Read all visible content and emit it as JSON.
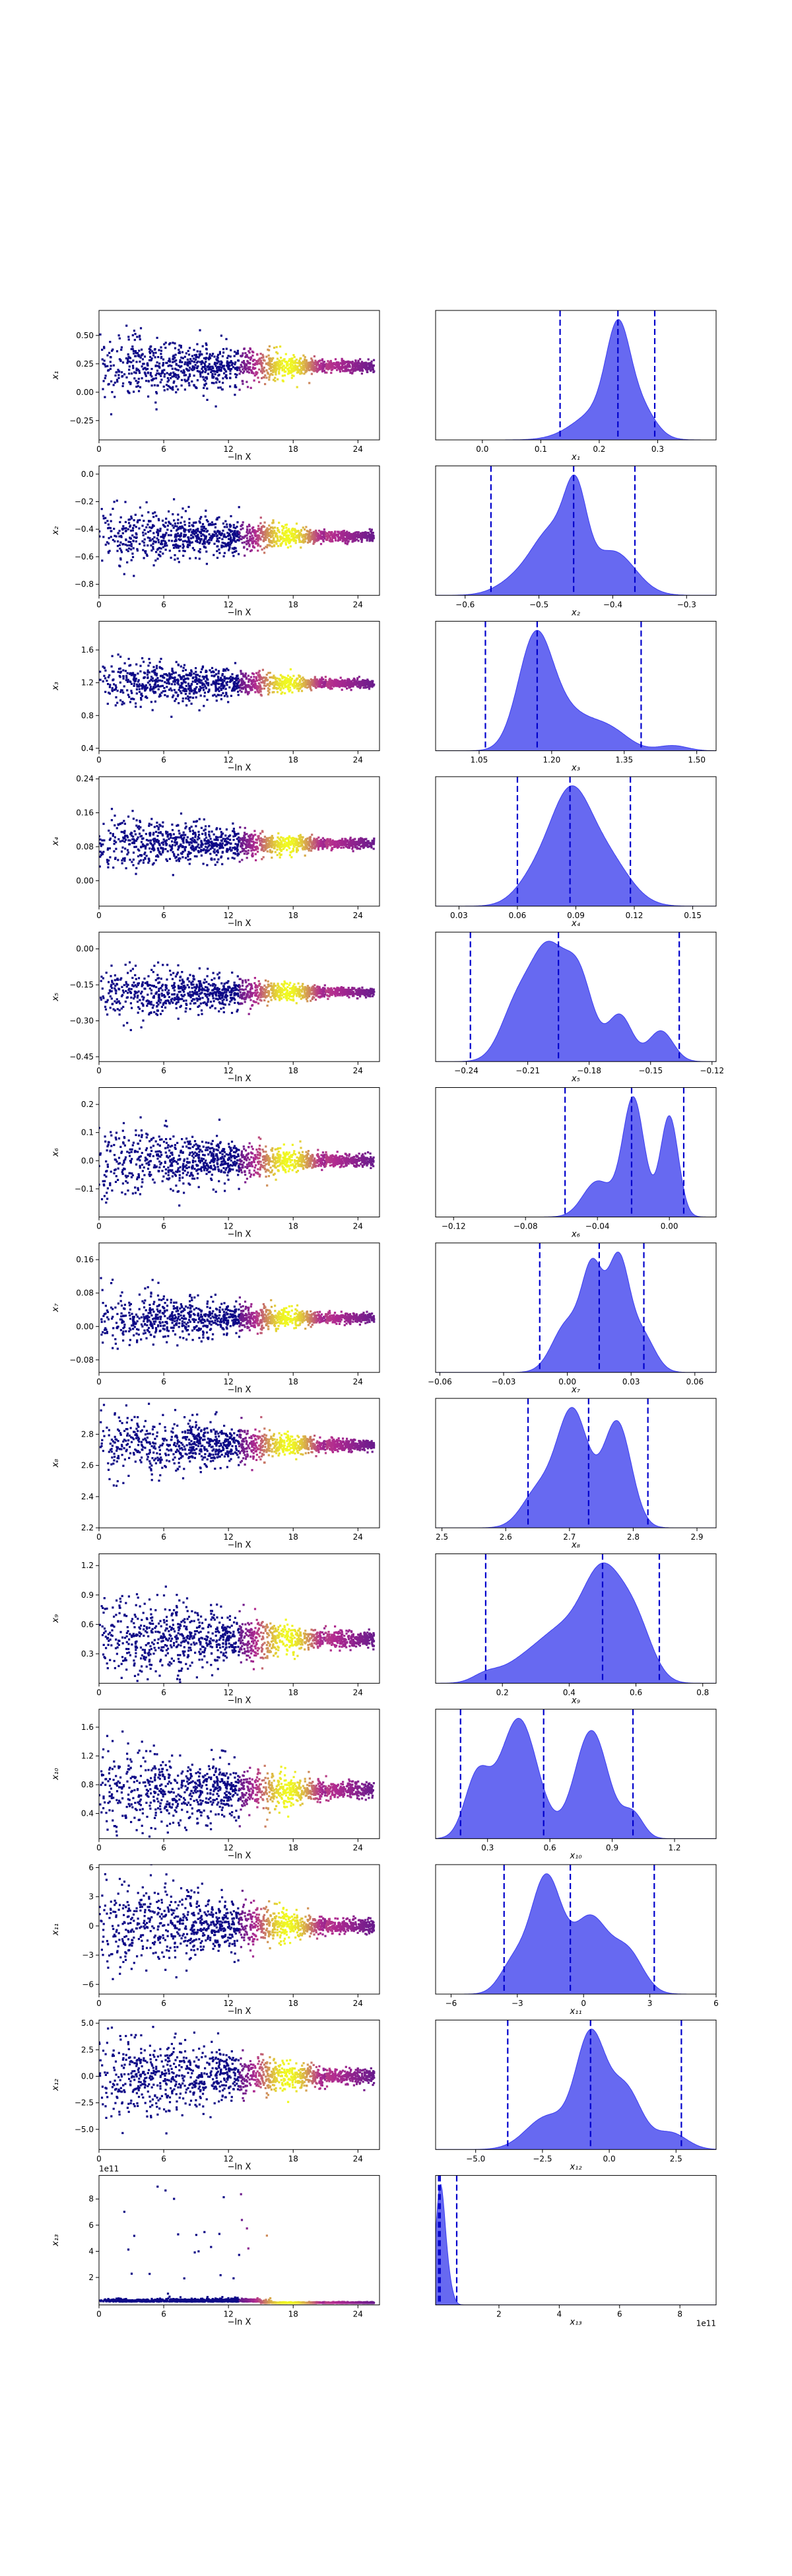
{
  "colors": {
    "density_fill": "#5a5cf0",
    "density_stroke": "#3b3df0",
    "quantile_line": "#0000cc",
    "scatter_low": "#0d0887",
    "scatter_mid": "#b12a90",
    "scatter_high": "#f0f921"
  },
  "chart_data": {
    "type": "scatter+density",
    "layout": "13 rows x 2 columns",
    "rows": [
      {
        "param": "x1",
        "ylabel": "x₁",
        "xlabel": "x₁",
        "trace": {
          "ylim": [
            -0.42,
            0.72
          ],
          "yticks": [
            -0.25,
            0.0,
            0.25,
            0.5
          ],
          "ytick_labels": [
            "−0.25",
            "0.00",
            "0.25",
            "0.50"
          ],
          "center": 0.23,
          "spread": 0.14,
          "skew": 0.0
        },
        "density": {
          "xlim": [
            -0.08,
            0.4
          ],
          "xticks": [
            0.0,
            0.1,
            0.2,
            0.3
          ],
          "xtick_labels": [
            "0.0",
            "0.1",
            "0.2",
            "0.3"
          ],
          "quantiles": [
            0.133,
            0.232,
            0.295
          ],
          "peaks": [
            [
              0.232,
              1.0,
              0.02
            ],
            [
              0.205,
              0.35,
              0.045
            ],
            [
              0.27,
              0.3,
              0.025
            ]
          ]
        }
      },
      {
        "param": "x2",
        "ylabel": "x₂",
        "xlabel": "x₂",
        "trace": {
          "ylim": [
            -0.88,
            0.06
          ],
          "yticks": [
            -0.8,
            -0.6,
            -0.4,
            -0.2,
            0.0
          ],
          "ytick_labels": [
            "−0.8",
            "−0.6",
            "−0.4",
            "−0.2",
            "0.0"
          ],
          "center": -0.45,
          "spread": 0.1,
          "skew": 0.0
        },
        "density": {
          "xlim": [
            -0.64,
            -0.26
          ],
          "xticks": [
            -0.6,
            -0.5,
            -0.4,
            -0.3
          ],
          "xtick_labels": [
            "−0.6",
            "−0.5",
            "−0.4",
            "−0.3"
          ],
          "quantiles": [
            -0.565,
            -0.453,
            -0.37
          ],
          "peaks": [
            [
              -0.45,
              1.0,
              0.015
            ],
            [
              -0.48,
              0.7,
              0.025
            ],
            [
              -0.4,
              0.55,
              0.03
            ],
            [
              -0.52,
              0.25,
              0.03
            ]
          ]
        }
      },
      {
        "param": "x3",
        "ylabel": "x₃",
        "xlabel": "x₃",
        "trace": {
          "ylim": [
            0.37,
            1.95
          ],
          "yticks": [
            0.4,
            0.8,
            1.2,
            1.6
          ],
          "ytick_labels": [
            "0.4",
            "0.8",
            "1.2",
            "1.6"
          ],
          "center": 1.19,
          "spread": 0.14,
          "skew": 0.0
        },
        "density": {
          "xlim": [
            0.96,
            1.54
          ],
          "xticks": [
            1.05,
            1.2,
            1.35,
            1.5
          ],
          "xtick_labels": [
            "1.05",
            "1.20",
            "1.35",
            "1.50"
          ],
          "quantiles": [
            1.063,
            1.17,
            1.385
          ],
          "peaks": [
            [
              1.165,
              1.0,
              0.035
            ],
            [
              1.23,
              0.35,
              0.05
            ],
            [
              1.32,
              0.18,
              0.04
            ],
            [
              1.45,
              0.05,
              0.03
            ]
          ]
        }
      },
      {
        "param": "x4",
        "ylabel": "x₄",
        "xlabel": "x₄",
        "trace": {
          "ylim": [
            -0.06,
            0.245
          ],
          "yticks": [
            0.0,
            0.08,
            0.16,
            0.24
          ],
          "ytick_labels": [
            "0.00",
            "0.08",
            "0.16",
            "0.24"
          ],
          "center": 0.087,
          "spread": 0.03,
          "skew": 0.0
        },
        "density": {
          "xlim": [
            0.018,
            0.162
          ],
          "xticks": [
            0.03,
            0.06,
            0.09,
            0.12,
            0.15
          ],
          "xtick_labels": [
            "0.03",
            "0.06",
            "0.09",
            "0.12",
            "0.15"
          ],
          "quantiles": [
            0.06,
            0.087,
            0.118
          ],
          "peaks": [
            [
              0.087,
              1.0,
              0.01
            ],
            [
              0.105,
              0.5,
              0.012
            ],
            [
              0.07,
              0.3,
              0.01
            ]
          ]
        }
      },
      {
        "param": "x5",
        "ylabel": "x₅",
        "xlabel": "x₅",
        "trace": {
          "ylim": [
            -0.47,
            0.07
          ],
          "yticks": [
            -0.45,
            -0.3,
            -0.15,
            0.0
          ],
          "ytick_labels": [
            "−0.45",
            "−0.30",
            "−0.15",
            "0.00"
          ],
          "center": -0.18,
          "spread": 0.05,
          "skew": 0.0
        },
        "density": {
          "xlim": [
            -0.255,
            -0.118
          ],
          "xticks": [
            -0.24,
            -0.21,
            -0.18,
            -0.15,
            -0.12
          ],
          "xtick_labels": [
            "−0.24",
            "−0.21",
            "−0.18",
            "−0.15",
            "−0.12"
          ],
          "quantiles": [
            -0.238,
            -0.195,
            -0.136
          ],
          "peaks": [
            [
              -0.2,
              1.0,
              0.008
            ],
            [
              -0.185,
              0.8,
              0.007
            ],
            [
              -0.215,
              0.55,
              0.008
            ],
            [
              -0.165,
              0.45,
              0.006
            ],
            [
              -0.145,
              0.3,
              0.006
            ]
          ]
        }
      },
      {
        "param": "x6",
        "ylabel": "x₆",
        "xlabel": "x₆",
        "trace": {
          "ylim": [
            -0.2,
            0.26
          ],
          "yticks": [
            -0.1,
            0.0,
            0.1,
            0.2
          ],
          "ytick_labels": [
            "−0.1",
            "0.0",
            "0.1",
            "0.2"
          ],
          "center": 0.0,
          "spread": 0.06,
          "skew": 0.0
        },
        "density": {
          "xlim": [
            -0.13,
            0.026
          ],
          "xticks": [
            -0.12,
            -0.08,
            -0.04,
            0.0
          ],
          "xtick_labels": [
            "−0.12",
            "−0.08",
            "−0.04",
            "0.00"
          ],
          "quantiles": [
            -0.058,
            -0.021,
            0.008
          ],
          "peaks": [
            [
              -0.02,
              1.0,
              0.006
            ],
            [
              0.0,
              0.85,
              0.005
            ],
            [
              -0.04,
              0.3,
              0.008
            ]
          ]
        }
      },
      {
        "param": "x7",
        "ylabel": "x₇",
        "xlabel": "x₇",
        "trace": {
          "ylim": [
            -0.11,
            0.2
          ],
          "yticks": [
            -0.08,
            0.0,
            0.08,
            0.16
          ],
          "ytick_labels": [
            "−0.08",
            "0.00",
            "0.08",
            "0.16"
          ],
          "center": 0.02,
          "spread": 0.03,
          "skew": 0.0
        },
        "density": {
          "xlim": [
            -0.062,
            0.07
          ],
          "xticks": [
            -0.06,
            -0.03,
            0.0,
            0.03,
            0.06
          ],
          "xtick_labels": [
            "−0.06",
            "−0.03",
            "0.00",
            "0.03",
            "0.06"
          ],
          "quantiles": [
            -0.013,
            0.015,
            0.036
          ],
          "peaks": [
            [
              0.012,
              0.9,
              0.005
            ],
            [
              0.024,
              1.0,
              0.005
            ],
            [
              0.0,
              0.45,
              0.007
            ],
            [
              0.035,
              0.35,
              0.006
            ]
          ]
        }
      },
      {
        "param": "x8",
        "ylabel": "x₈",
        "xlabel": "x₈",
        "trace": {
          "ylim": [
            2.2,
            3.03
          ],
          "yticks": [
            2.2,
            2.4,
            2.6,
            2.8
          ],
          "ytick_labels": [
            "2.2",
            "2.4",
            "2.6",
            "2.8"
          ],
          "center": 2.73,
          "spread": 0.1,
          "skew": 0.0
        },
        "density": {
          "xlim": [
            2.49,
            2.93
          ],
          "xticks": [
            2.5,
            2.6,
            2.7,
            2.8,
            2.9
          ],
          "xtick_labels": [
            "2.5",
            "2.6",
            "2.7",
            "2.8",
            "2.9"
          ],
          "quantiles": [
            2.635,
            2.73,
            2.823
          ],
          "peaks": [
            [
              2.705,
              1.0,
              0.025
            ],
            [
              2.775,
              0.9,
              0.022
            ],
            [
              2.65,
              0.3,
              0.025
            ]
          ]
        }
      },
      {
        "param": "x9",
        "ylabel": "x₉",
        "xlabel": "x₉",
        "trace": {
          "ylim": [
            0.0,
            1.32
          ],
          "yticks": [
            0.3,
            0.6,
            0.9,
            1.2
          ],
          "ytick_labels": [
            "0.3",
            "0.6",
            "0.9",
            "1.2"
          ],
          "center": 0.45,
          "spread": 0.22,
          "skew": 0.0
        },
        "density": {
          "xlim": [
            0.0,
            0.84
          ],
          "xticks": [
            0.2,
            0.4,
            0.6,
            0.8
          ],
          "xtick_labels": [
            "0.2",
            "0.4",
            "0.6",
            "0.8"
          ],
          "quantiles": [
            0.15,
            0.5,
            0.67
          ],
          "peaks": [
            [
              0.5,
              1.0,
              0.06
            ],
            [
              0.37,
              0.45,
              0.07
            ],
            [
              0.6,
              0.5,
              0.05
            ],
            [
              0.15,
              0.08,
              0.04
            ],
            [
              0.25,
              0.15,
              0.06
            ]
          ]
        }
      },
      {
        "param": "x10",
        "ylabel": "x₁₀",
        "xlabel": "x₁₀",
        "trace": {
          "ylim": [
            0.05,
            1.85
          ],
          "yticks": [
            0.4,
            0.8,
            1.2,
            1.6
          ],
          "ytick_labels": [
            "0.4",
            "0.8",
            "1.2",
            "1.6"
          ],
          "center": 0.72,
          "spread": 0.3,
          "skew": 0.0
        },
        "density": {
          "xlim": [
            0.05,
            1.4
          ],
          "xticks": [
            0.3,
            0.6,
            0.9,
            1.2
          ],
          "xtick_labels": [
            "0.3",
            "0.6",
            "0.9",
            "1.2"
          ],
          "quantiles": [
            0.17,
            0.57,
            1.0
          ],
          "peaks": [
            [
              0.25,
              0.5,
              0.06
            ],
            [
              0.45,
              1.0,
              0.09
            ],
            [
              0.8,
              0.9,
              0.08
            ],
            [
              1.0,
              0.2,
              0.05
            ]
          ]
        }
      },
      {
        "param": "x11",
        "ylabel": "x₁₁",
        "xlabel": "x₁₁",
        "trace": {
          "ylim": [
            -7.0,
            6.3
          ],
          "yticks": [
            -6,
            -3,
            0,
            3,
            6
          ],
          "ytick_labels": [
            "−6",
            "−3",
            "0",
            "3",
            "6"
          ],
          "center": 0.0,
          "spread": 2.2,
          "skew": 0.0
        },
        "density": {
          "xlim": [
            -6.7,
            6.0
          ],
          "xticks": [
            -6,
            -3,
            0,
            3,
            6
          ],
          "xtick_labels": [
            "−6",
            "−3",
            "0",
            "3",
            "6"
          ],
          "quantiles": [
            -3.6,
            -0.6,
            3.2
          ],
          "peaks": [
            [
              -1.7,
              1.0,
              0.7
            ],
            [
              0.3,
              0.65,
              0.8
            ],
            [
              2.0,
              0.35,
              0.7
            ],
            [
              -3.2,
              0.25,
              0.6
            ]
          ]
        }
      },
      {
        "param": "x12",
        "ylabel": "x₁₂",
        "xlabel": "x₁₂",
        "trace": {
          "ylim": [
            -6.9,
            5.3
          ],
          "yticks": [
            -5.0,
            -2.5,
            0.0,
            2.5,
            5.0
          ],
          "ytick_labels": [
            "−5.0",
            "−2.5",
            "0.0",
            "2.5",
            "5.0"
          ],
          "center": 0.0,
          "spread": 2.0,
          "skew": 0.0
        },
        "density": {
          "xlim": [
            -6.5,
            4.0
          ],
          "xticks": [
            -5.0,
            -2.5,
            0.0,
            2.5
          ],
          "xtick_labels": [
            "−5.0",
            "−2.5",
            "0.0",
            "2.5"
          ],
          "quantiles": [
            -3.8,
            -0.7,
            2.7
          ],
          "peaks": [
            [
              -0.7,
              1.0,
              0.55
            ],
            [
              0.6,
              0.55,
              0.6
            ],
            [
              -2.3,
              0.3,
              0.8
            ],
            [
              2.3,
              0.15,
              0.6
            ]
          ]
        }
      },
      {
        "param": "x13",
        "ylabel": "x₁₃",
        "xlabel": "x₁₃",
        "trace": {
          "ylim": [
            -0.1,
            9.8
          ],
          "yticks": [
            2,
            4,
            6,
            8
          ],
          "ytick_labels": [
            "2",
            "4",
            "6",
            "8"
          ],
          "offset_text": "1e11",
          "center": 0.15,
          "spread": 0.1,
          "skew": 1.0
        },
        "density": {
          "xlim": [
            -0.1,
            9.2
          ],
          "xticks": [
            2,
            4,
            6,
            8
          ],
          "xtick_labels": [
            "2",
            "4",
            "6",
            "8"
          ],
          "offset_text": "1e11",
          "quantiles": [
            0.0,
            0.05,
            0.6
          ],
          "peaks": [
            [
              0.05,
              1.0,
              0.15
            ],
            [
              0.3,
              0.2,
              0.15
            ]
          ]
        }
      }
    ],
    "trace_xlabel": "−ln X",
    "trace_xlim": [
      0,
      26
    ],
    "trace_xticks": [
      0,
      6,
      12,
      18,
      24
    ],
    "trace_xtick_labels": [
      "0",
      "6",
      "12",
      "18",
      "24"
    ]
  }
}
